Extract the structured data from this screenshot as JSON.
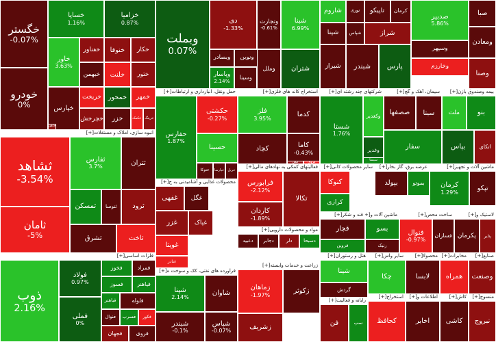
{
  "legend": {
    "expand_marker": "[+]"
  },
  "colors": {
    "strong_pos": "#2ac22a",
    "pos": "#0f8a17",
    "weak_pos": "#0d5c12",
    "dark_neg": "#5a0a0a",
    "neg": "#8e1010",
    "strong_neg": "#ec1f1f"
  },
  "chart_data": {
    "type": "treemap",
    "sectors": [
      {
        "name": "",
        "label_bar": false,
        "stocks": [
          {
            "name": "خگستر",
            "change": "-0.07%",
            "dir": "neg1"
          },
          {
            "name": "خودرو",
            "change": "0%",
            "dir": "neg1"
          },
          {
            "name": "خساپا",
            "change": "1.16%",
            "dir": "pos2"
          },
          {
            "name": "خزامیا",
            "change": "0.87%",
            "dir": "pos1"
          },
          {
            "name": "خاور",
            "change": "3.63%",
            "dir": "pos3"
          },
          {
            "name": "خفناور",
            "change": "",
            "dir": "neg2"
          },
          {
            "name": "خنوقا",
            "change": "",
            "dir": "neg2"
          },
          {
            "name": "خکار",
            "change": "",
            "dir": "neg2"
          },
          {
            "name": "خبهمن",
            "change": "",
            "dir": "neg1"
          },
          {
            "name": "خلنت",
            "change": "",
            "dir": "neg3"
          },
          {
            "name": "ختور",
            "change": "",
            "dir": "neg2"
          },
          {
            "name": "خپارس",
            "change": "",
            "dir": "neg1"
          },
          {
            "name": "خریخت",
            "change": "",
            "dir": "neg3"
          },
          {
            "name": "خمحور",
            "change": "",
            "dir": "pos1"
          },
          {
            "name": "خمهر",
            "change": "",
            "dir": "neg3"
          },
          {
            "name": "خچرخش",
            "change": "",
            "dir": "neg2"
          },
          {
            "name": "خزر",
            "change": "",
            "dir": "neg1"
          },
          {
            "name": "خکمک",
            "change": "",
            "dir": "neg3"
          },
          {
            "name": "خرینگ",
            "change": "",
            "dir": "neg2"
          },
          {
            "name": "خاهن",
            "change": "",
            "dir": "neg2"
          }
        ]
      },
      {
        "name": "انبوه سازی، املاک و مستغلات",
        "label_bar": true,
        "stocks": [
          {
            "name": "ثشاهد",
            "change": "-3.54%",
            "dir": "neg3"
          },
          {
            "name": "ثامان",
            "change": "-5%",
            "dir": "neg3"
          },
          {
            "name": "ثفارس",
            "change": "3.7%",
            "dir": "pos3"
          },
          {
            "name": "ثمسکن",
            "change": "",
            "dir": "pos2"
          },
          {
            "name": "ثنوسا",
            "change": "",
            "dir": "neg1"
          },
          {
            "name": "ثرود",
            "change": "",
            "dir": "neg2"
          },
          {
            "name": "ثتران",
            "change": "",
            "dir": "neg1"
          },
          {
            "name": "ثشرق",
            "change": "",
            "dir": "neg1"
          },
          {
            "name": "ثاخت",
            "change": "",
            "dir": "neg3"
          }
        ]
      },
      {
        "name": "فلزات اساسی",
        "label_bar": true,
        "stocks": [
          {
            "name": "ذوب",
            "change": "2.16%",
            "dir": "pos3"
          },
          {
            "name": "فولاد",
            "change": "0.97%",
            "dir": "pos1"
          },
          {
            "name": "فملی",
            "change": "0%",
            "dir": "pos1"
          },
          {
            "name": "فخوز",
            "change": "",
            "dir": "pos2"
          },
          {
            "name": "فمراد",
            "change": "",
            "dir": "neg1"
          },
          {
            "name": "فسوز",
            "change": "",
            "dir": "pos2"
          },
          {
            "name": "فیاهنر",
            "change": "",
            "dir": "pos2"
          },
          {
            "name": "فباهنر",
            "change": "",
            "dir": "pos2"
          },
          {
            "name": "فلوله",
            "change": "",
            "dir": "neg1"
          },
          {
            "name": "فنوال",
            "change": "",
            "dir": "neg1"
          },
          {
            "name": "فسرب",
            "change": "",
            "dir": "pos2"
          },
          {
            "name": "فکور",
            "change": "",
            "dir": "neg3"
          },
          {
            "name": "فجهان",
            "change": "",
            "dir": "neg2"
          },
          {
            "name": "فروی",
            "change": "",
            "dir": "neg1"
          }
        ]
      },
      {
        "name": "",
        "label_bar": false,
        "stocks": [
          {
            "name": "وبملت",
            "change": "0.07%",
            "dir": "pos1"
          },
          {
            "name": "دی",
            "change": "-1.33%",
            "dir": "neg2"
          },
          {
            "name": "وتجارت",
            "change": "-0.61%",
            "dir": "neg1"
          },
          {
            "name": "وبصادر",
            "change": "",
            "dir": "neg1"
          },
          {
            "name": "ونوین",
            "change": "",
            "dir": "neg1"
          },
          {
            "name": "وپاسار",
            "change": "2.14%",
            "dir": "pos2"
          },
          {
            "name": "وسینا",
            "change": "",
            "dir": "neg1"
          },
          {
            "name": "وملل",
            "change": "",
            "dir": "neg1"
          }
        ]
      },
      {
        "name": "",
        "label_bar": false,
        "stocks": [
          {
            "name": "شبنا",
            "change": "6.99%",
            "dir": "pos3"
          },
          {
            "name": "شاروم",
            "change": "",
            "dir": "pos3"
          },
          {
            "name": "نوری",
            "change": "",
            "dir": "neg1"
          },
          {
            "name": "تاپیکو",
            "change": "",
            "dir": "neg1"
          },
          {
            "name": "کرمان",
            "change": "",
            "dir": "neg1"
          },
          {
            "name": "شپنا",
            "change": "",
            "dir": "neg1"
          },
          {
            "name": "شپاس",
            "change": "",
            "dir": "neg1"
          },
          {
            "name": "شراز",
            "change": "",
            "dir": "neg2"
          },
          {
            "name": "شتران",
            "change": "",
            "dir": "pos1"
          },
          {
            "name": "شیراز",
            "change": "",
            "dir": "neg1"
          },
          {
            "name": "شبندر",
            "change": "",
            "dir": "neg1"
          },
          {
            "name": "پارس",
            "change": "",
            "dir": "pos1"
          }
        ]
      },
      {
        "name": "",
        "label_bar": false,
        "stocks": [
          {
            "name": "صدبیر",
            "change": "5.86%",
            "dir": "pos3"
          },
          {
            "name": "وسپهر",
            "change": "",
            "dir": "neg1"
          },
          {
            "name": "وخارزم",
            "change": "",
            "dir": "neg3"
          },
          {
            "name": "صبا",
            "change": "",
            "dir": "neg1"
          },
          {
            "name": "ومعادن",
            "change": "",
            "dir": "neg1"
          },
          {
            "name": "وصنا",
            "change": "",
            "dir": "neg2"
          }
        ]
      },
      {
        "name": "حمل ونقل، انبارداری و ارتباطات",
        "label_bar": true,
        "stocks": [
          {
            "name": "حفارس",
            "change": "1.87%",
            "dir": "pos2"
          },
          {
            "name": "حسینا",
            "change": "",
            "dir": "pos3"
          },
          {
            "name": "حکشتی",
            "change": "-0.27%",
            "dir": "neg3"
          },
          {
            "name": "حتوکا",
            "change": "",
            "dir": "neg1"
          },
          {
            "name": "حپارسا",
            "change": "",
            "dir": "neg1"
          },
          {
            "name": "حریل",
            "change": "",
            "dir": "neg1"
          }
        ]
      },
      {
        "name": "استخراج کانه های فلزی",
        "label_bar": true,
        "stocks": [
          {
            "name": "فلز",
            "change": "3.95%",
            "dir": "pos3"
          },
          {
            "name": "کدما",
            "change": "",
            "dir": "neg1"
          },
          {
            "name": "کچاد",
            "change": "",
            "dir": "neg1"
          },
          {
            "name": "کاما",
            "change": "-0.43%",
            "dir": "neg1"
          },
          {
            "name": "کگل",
            "change": "",
            "dir": "neg2"
          },
          {
            "name": "کروی",
            "change": "",
            "dir": "neg3"
          }
        ]
      },
      {
        "name": "شرکتهای چند رشته ای",
        "label_bar": true,
        "stocks": [
          {
            "name": "شستا",
            "change": "1.76%",
            "dir": "pos2"
          },
          {
            "name": "وکغدیر",
            "change": "",
            "dir": "pos3"
          },
          {
            "name": "وغدیر",
            "change": "",
            "dir": "pos1"
          },
          {
            "name": "سیشا",
            "change": "",
            "dir": "pos2"
          }
        ]
      },
      {
        "name": "سیمان، آهک و گچ",
        "label_bar": true,
        "stocks": [
          {
            "name": "صصفها",
            "change": "",
            "dir": "neg1"
          },
          {
            "name": "سیتا",
            "change": "",
            "dir": "neg1"
          },
          {
            "name": "سفار",
            "change": "",
            "dir": "pos2"
          }
        ]
      },
      {
        "name": "بیمه وصندوق بازن",
        "label_bar": true,
        "stocks": [
          {
            "name": "ملت",
            "change": "",
            "dir": "pos3"
          },
          {
            "name": "بنو",
            "change": "",
            "dir": "pos2"
          },
          {
            "name": "بپاس",
            "change": "",
            "dir": "pos1"
          },
          {
            "name": "اتکای",
            "change": "",
            "dir": "neg2"
          }
        ]
      },
      {
        "name": "فعالیتهای کمکی به نهادهای مالی",
        "label_bar": true,
        "stocks": [
          {
            "name": "فرابورس",
            "change": "-2.12%",
            "dir": "neg3"
          },
          {
            "name": "کاردان",
            "change": "-1.89%",
            "dir": "neg2"
          },
          {
            "name": "تکالا",
            "change": "",
            "dir": "neg2"
          }
        ]
      },
      {
        "name": "سایر محصولات کانی",
        "label_bar": true,
        "stocks": [
          {
            "name": "کنوکا",
            "change": "",
            "dir": "neg3"
          },
          {
            "name": "کرازی",
            "change": "",
            "dir": "pos2"
          }
        ]
      },
      {
        "name": "عرضه برق، گاز بخار",
        "label_bar": true,
        "stocks": [
          {
            "name": "بپولد",
            "change": "",
            "dir": "neg1"
          },
          {
            "name": "بموتو",
            "change": "",
            "dir": "pos2"
          }
        ]
      },
      {
        "name": "ماشین آلات و تجهیز",
        "label_bar": true,
        "stocks": [
          {
            "name": "کرمان",
            "change": "1.29%",
            "dir": "pos2"
          },
          {
            "name": "تپکو",
            "change": "",
            "dir": "neg1"
          }
        ]
      },
      {
        "name": "محصولات غذایی و آشامیدنی به ج",
        "label_bar": true,
        "stocks": [
          {
            "name": "غفهی",
            "change": "",
            "dir": "neg2"
          },
          {
            "name": "غگل",
            "change": "",
            "dir": "neg1"
          },
          {
            "name": "غزر",
            "change": "",
            "dir": "neg2"
          },
          {
            "name": "غویتا",
            "change": "",
            "dir": "neg3"
          },
          {
            "name": "غپاک",
            "change": "",
            "dir": "neg2"
          },
          {
            "name": "غنادر",
            "change": "",
            "dir": "neg3"
          }
        ]
      },
      {
        "name": "مواد و محصولات دارویی",
        "label_bar": true,
        "stocks": [
          {
            "name": "دعبید",
            "change": "",
            "dir": "neg1"
          },
          {
            "name": "دجابر",
            "change": "",
            "dir": "neg1"
          },
          {
            "name": "دلر",
            "change": "",
            "dir": "neg2"
          },
          {
            "name": "دسبحا",
            "change": "",
            "dir": "pos2"
          }
        ]
      },
      {
        "name": "قند و شکر",
        "label_bar": true,
        "stocks": [
          {
            "name": "قچار",
            "change": "",
            "dir": "neg1"
          },
          {
            "name": "قزوین",
            "change": "",
            "dir": "pos2"
          }
        ]
      },
      {
        "name": "ماشین آلات و",
        "label_bar": true,
        "stocks": [
          {
            "name": "بسو",
            "change": "",
            "dir": "pos2"
          },
          {
            "name": "رنیک",
            "change": "",
            "dir": "neg1"
          }
        ]
      },
      {
        "name": "ساخت محص",
        "label_bar": true,
        "stocks": [
          {
            "name": "فنوال",
            "change": "-0.97%",
            "dir": "neg3"
          },
          {
            "name": "فسازان",
            "change": "",
            "dir": "neg1"
          }
        ]
      },
      {
        "name": "لاستیک و",
        "label_bar": true,
        "stocks": [
          {
            "name": "پکرمان",
            "change": "",
            "dir": "neg1"
          },
          {
            "name": "پتایر",
            "change": "",
            "dir": "neg2"
          }
        ]
      },
      {
        "name": "فراورده های نفتی، کک و سوخت ه",
        "label_bar": true,
        "stocks": [
          {
            "name": "شپنا",
            "change": "2.14%",
            "dir": "pos2"
          },
          {
            "name": "شاوان",
            "change": "",
            "dir": "neg1"
          },
          {
            "name": "شبندر",
            "change": "-0.1%",
            "dir": "neg1"
          },
          {
            "name": "شپاس",
            "change": "-0.07%",
            "dir": "neg1"
          }
        ]
      },
      {
        "name": "زراعت و خدمات وابسته",
        "label_bar": true,
        "stocks": [
          {
            "name": "زماهان",
            "change": "-1.97%",
            "dir": "neg3"
          },
          {
            "name": "زکوثر",
            "change": "",
            "dir": "neg1"
          },
          {
            "name": "زشریف",
            "change": "",
            "dir": "neg2"
          }
        ]
      },
      {
        "name": "هتل و رستوران",
        "label_bar": true,
        "stocks": [
          {
            "name": "شینا",
            "change": "",
            "dir": "pos3"
          },
          {
            "name": "گردش",
            "change": "",
            "dir": "neg1"
          }
        ]
      },
      {
        "name": "رایانه و فعالیت",
        "label_bar": true,
        "stocks": [
          {
            "name": "فن",
            "change": "",
            "dir": "neg2"
          },
          {
            "name": "سپ",
            "change": "",
            "dir": "pos2"
          }
        ]
      },
      {
        "name": "سایر واس",
        "label_bar": true,
        "stocks": [
          {
            "name": "چکا",
            "change": "",
            "dir": "pos3"
          }
        ]
      },
      {
        "name": "محصولا",
        "label_bar": true,
        "stocks": [
          {
            "name": "لابسا",
            "change": "",
            "dir": "neg1"
          }
        ]
      },
      {
        "name": "استخراج",
        "label_bar": true,
        "stocks": [
          {
            "name": "کحافظ",
            "change": "",
            "dir": "neg3"
          }
        ]
      },
      {
        "name": "اطلاعات و",
        "label_bar": true,
        "stocks": [
          {
            "name": "اخابر",
            "change": "",
            "dir": "neg1"
          }
        ]
      },
      {
        "name": "مخابرات",
        "label_bar": true,
        "stocks": [
          {
            "name": "همراه",
            "change": "",
            "dir": "neg3"
          }
        ]
      },
      {
        "name": "صنایع",
        "label_bar": true,
        "stocks": [
          {
            "name": "وصنعت",
            "change": "",
            "dir": "neg2"
          }
        ]
      },
      {
        "name": "کاش",
        "label_bar": true,
        "stocks": [
          {
            "name": "کاشی",
            "change": "",
            "dir": "neg1"
          }
        ]
      },
      {
        "name": "منسوج",
        "label_bar": true,
        "stocks": [
          {
            "name": "نبروج",
            "change": "",
            "dir": "neg2"
          }
        ]
      },
      {
        "name": "کاغذ",
        "label_bar": true,
        "stocks": [
          {
            "name": "چکاوه",
            "change": "",
            "dir": "pos2"
          }
        ]
      }
    ]
  }
}
